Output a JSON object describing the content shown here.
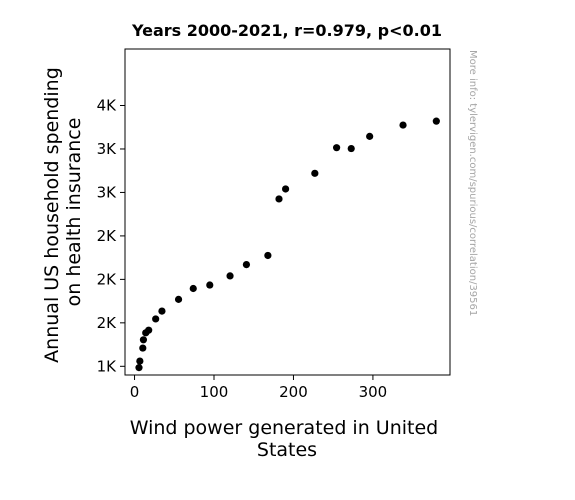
{
  "chart_data": {
    "type": "scatter",
    "title": "Years 2000-2021, r=0.979, p<0.01",
    "xlabel": [
      "Wind power generated in United",
      "States"
    ],
    "ylabel": [
      "Annual US household spending",
      "on health insurance"
    ],
    "watermark": "More info: tylervigen.com/spurious/correlation/39561",
    "xlim": [
      -12,
      397
    ],
    "ylim": [
      900,
      4650
    ],
    "xticks": [
      {
        "value": 0,
        "label": "0"
      },
      {
        "value": 100,
        "label": "100"
      },
      {
        "value": 200,
        "label": "200"
      },
      {
        "value": 300,
        "label": "300"
      }
    ],
    "yticks": [
      {
        "value": 1000,
        "label": "1K"
      },
      {
        "value": 1500,
        "label": "2K"
      },
      {
        "value": 2000,
        "label": "2K"
      },
      {
        "value": 2500,
        "label": "2K"
      },
      {
        "value": 3000,
        "label": "3K"
      },
      {
        "value": 3500,
        "label": "3K"
      },
      {
        "value": 4000,
        "label": "4K"
      }
    ],
    "grid": false,
    "marker_color": "#000000",
    "points": [
      {
        "x": 5.6,
        "y": 985
      },
      {
        "x": 6.7,
        "y": 1060
      },
      {
        "x": 10.4,
        "y": 1210
      },
      {
        "x": 11.2,
        "y": 1305
      },
      {
        "x": 14.1,
        "y": 1385
      },
      {
        "x": 17.8,
        "y": 1415
      },
      {
        "x": 26.6,
        "y": 1545
      },
      {
        "x": 34.5,
        "y": 1635
      },
      {
        "x": 55.4,
        "y": 1770
      },
      {
        "x": 73.9,
        "y": 1895
      },
      {
        "x": 94.7,
        "y": 1935
      },
      {
        "x": 120.2,
        "y": 2040
      },
      {
        "x": 140.8,
        "y": 2170
      },
      {
        "x": 167.8,
        "y": 2275
      },
      {
        "x": 181.8,
        "y": 2925
      },
      {
        "x": 190.1,
        "y": 3040
      },
      {
        "x": 226.9,
        "y": 3220
      },
      {
        "x": 254.3,
        "y": 3515
      },
      {
        "x": 272.7,
        "y": 3505
      },
      {
        "x": 295.9,
        "y": 3645
      },
      {
        "x": 337.9,
        "y": 3775
      },
      {
        "x": 379.8,
        "y": 3820
      }
    ]
  }
}
